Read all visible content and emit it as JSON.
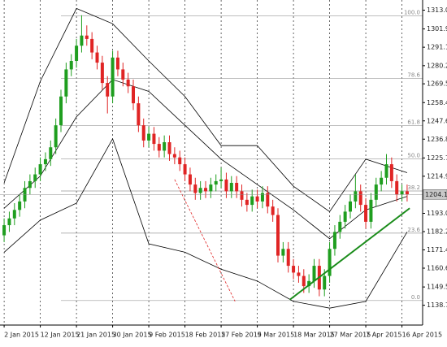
{
  "chart_data": {
    "type": "candlestick",
    "categories": [
      "2 Jan 2015",
      null,
      null,
      null,
      null,
      null,
      null,
      "12 Jan 2015",
      null,
      null,
      null,
      null,
      null,
      null,
      "21 Jan 2015",
      null,
      null,
      null,
      null,
      null,
      null,
      "30 Jan 2015",
      null,
      null,
      null,
      null,
      null,
      null,
      "9 Feb 2015",
      null,
      null,
      null,
      null,
      null,
      null,
      "18 Feb 2015",
      null,
      null,
      null,
      null,
      null,
      null,
      "27 Feb 2015",
      null,
      null,
      null,
      null,
      null,
      null,
      "9 Mar 2015",
      null,
      null,
      null,
      null,
      null,
      null,
      "18 Mar 2015",
      null,
      null,
      null,
      null,
      null,
      null,
      "27 Mar 2015",
      null,
      null,
      null,
      null,
      null,
      null,
      "7 Apr 2015",
      null,
      null,
      null,
      null,
      null,
      null,
      "16 Apr 2015",
      null
    ],
    "open": [
      1180,
      1186,
      1190,
      1195,
      1200,
      1208,
      1212,
      1216,
      1222,
      1225,
      1232,
      1245,
      1262,
      1278,
      1283,
      1292,
      1298,
      1296,
      1288,
      1282,
      1270,
      1262,
      1285,
      1278,
      1272,
      1268,
      1258,
      1245,
      1236,
      1240,
      1234,
      1230,
      1235,
      1228,
      1226,
      1222,
      1216,
      1210,
      1205,
      1208,
      1206,
      1210,
      1212,
      1213,
      1206,
      1211,
      1206,
      1201,
      1198,
      1203,
      1200,
      1205,
      1197,
      1192,
      1168,
      1172,
      1162,
      1158,
      1156,
      1150,
      1153,
      1162,
      1148,
      1156,
      1172,
      1182,
      1188,
      1194,
      1200,
      1206,
      1198,
      1188,
      1201,
      1210,
      1214,
      1222,
      1212,
      1204,
      1206
    ],
    "high": [
      1190,
      1194,
      1199,
      1204,
      1212,
      1216,
      1220,
      1226,
      1229,
      1236,
      1249,
      1266,
      1282,
      1287,
      1296,
      1310,
      1304,
      1300,
      1292,
      1286,
      1274,
      1289,
      1289,
      1282,
      1276,
      1272,
      1262,
      1249,
      1244,
      1244,
      1238,
      1239,
      1239,
      1232,
      1230,
      1226,
      1220,
      1214,
      1212,
      1212,
      1214,
      1216,
      1220,
      1217,
      1215,
      1215,
      1210,
      1205,
      1207,
      1207,
      1209,
      1209,
      1201,
      1196,
      1176,
      1176,
      1166,
      1162,
      1160,
      1157,
      1166,
      1166,
      1160,
      1176,
      1186,
      1192,
      1198,
      1204,
      1216,
      1210,
      1202,
      1205,
      1214,
      1218,
      1228,
      1226,
      1216,
      1210,
      1210
    ],
    "low": [
      1176,
      1182,
      1186,
      1191,
      1196,
      1204,
      1208,
      1212,
      1218,
      1221,
      1228,
      1241,
      1258,
      1274,
      1279,
      1288,
      1292,
      1284,
      1278,
      1266,
      1252,
      1258,
      1274,
      1268,
      1264,
      1254,
      1241,
      1232,
      1232,
      1230,
      1226,
      1226,
      1224,
      1222,
      1218,
      1212,
      1206,
      1201,
      1201,
      1202,
      1202,
      1206,
      1208,
      1202,
      1202,
      1202,
      1197,
      1194,
      1194,
      1196,
      1196,
      1193,
      1188,
      1164,
      1164,
      1158,
      1154,
      1152,
      1146,
      1146,
      1149,
      1144,
      1144,
      1152,
      1168,
      1178,
      1184,
      1190,
      1196,
      1194,
      1184,
      1184,
      1197,
      1206,
      1210,
      1208,
      1200,
      1200,
      1200
    ],
    "close": [
      1186,
      1190,
      1195,
      1200,
      1208,
      1212,
      1216,
      1222,
      1225,
      1232,
      1245,
      1262,
      1278,
      1283,
      1292,
      1298,
      1296,
      1288,
      1282,
      1270,
      1262,
      1285,
      1278,
      1272,
      1268,
      1258,
      1245,
      1236,
      1240,
      1234,
      1230,
      1235,
      1228,
      1226,
      1222,
      1216,
      1210,
      1205,
      1208,
      1206,
      1210,
      1212,
      1213,
      1206,
      1211,
      1206,
      1201,
      1198,
      1203,
      1200,
      1205,
      1197,
      1192,
      1168,
      1172,
      1162,
      1158,
      1156,
      1150,
      1153,
      1162,
      1148,
      1156,
      1172,
      1182,
      1188,
      1194,
      1200,
      1206,
      1198,
      1188,
      1201,
      1210,
      1214,
      1222,
      1212,
      1204,
      1206,
      1204.14
    ],
    "up_color": "#1f9e1f",
    "down_color": "#e02424",
    "xlim": [
      -0.8,
      81
    ],
    "ylim": [
      1127,
      1319
    ],
    "yticks": [
      {
        "value": 1313,
        "label": "1313.00"
      },
      {
        "value": 1301.9,
        "label": "1301.90"
      },
      {
        "value": 1291.1,
        "label": "1291.10"
      },
      {
        "value": 1280.2,
        "label": "1280.20"
      },
      {
        "value": 1269.5,
        "label": "1269.50"
      },
      {
        "value": 1258.4,
        "label": "1258.40"
      },
      {
        "value": 1247.6,
        "label": "1247.60"
      },
      {
        "value": 1236.8,
        "label": "1236.80"
      },
      {
        "value": 1225.7,
        "label": "1225.70"
      },
      {
        "value": 1214.9,
        "label": "1214.90"
      },
      {
        "value": 1193,
        "label": "1193.00"
      },
      {
        "value": 1182.2,
        "label": "1182.20"
      },
      {
        "value": 1171.4,
        "label": "1171.40"
      },
      {
        "value": 1160.6,
        "label": "1160.60"
      },
      {
        "value": 1149.5,
        "label": "1149.50"
      },
      {
        "value": 1138.7,
        "label": "1138.70"
      }
    ],
    "last_price": {
      "value": 1204.14,
      "label": "1204.14"
    },
    "levels": [
      {
        "value": 1309.6,
        "label": "100.0"
      },
      {
        "value": 1272.7,
        "label": "78.6"
      },
      {
        "value": 1244.8,
        "label": "61.8"
      },
      {
        "value": 1225.2,
        "label": "50.0"
      },
      {
        "value": 1206.2,
        "label": "38.2"
      },
      {
        "value": 1181.3,
        "label": "23.6"
      },
      {
        "value": 1141.5,
        "label": "0.0"
      }
    ],
    "lines": [
      {
        "x": [
          0,
          7,
          14,
          21,
          28,
          35,
          42,
          49,
          56,
          63,
          70,
          78
        ],
        "values": [
          1211,
          1271,
          1314,
          1305,
          1283,
          1262,
          1233,
          1233,
          1209,
          1194,
          1225,
          1217
        ],
        "color": "#000000"
      },
      {
        "x": [
          0,
          7,
          14,
          21,
          28,
          35,
          42,
          49,
          56,
          63,
          70,
          78
        ],
        "values": [
          1196,
          1215,
          1250,
          1272,
          1265,
          1245,
          1225,
          1210,
          1195,
          1178,
          1195,
          1203
        ],
        "color": "#000000"
      },
      {
        "x": [
          0,
          7,
          14,
          21,
          28,
          35,
          42,
          49,
          56,
          63,
          70,
          78
        ],
        "values": [
          1170,
          1189,
          1199,
          1237,
          1175,
          1170,
          1160,
          1153,
          1141,
          1137,
          1141,
          1182
        ],
        "color": "#000000"
      }
    ],
    "trendlines": [
      {
        "x": [
          55.3,
          78.5
        ],
        "y": [
          1142,
          1196
        ],
        "color": "#1a8c1a",
        "dashed": false
      },
      {
        "x": [
          33,
          44.7
        ],
        "y": [
          1213,
          1141
        ],
        "color": "#e02424",
        "dashed": true
      }
    ]
  }
}
